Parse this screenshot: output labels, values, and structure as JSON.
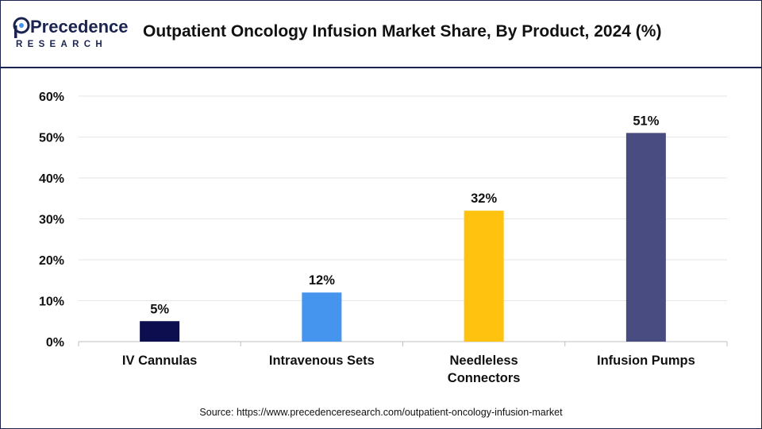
{
  "header": {
    "logo_text_main": "Precedence",
    "logo_text_sub": "RESEARCH",
    "title": "Outpatient Oncology Infusion Market Share, By Product, 2024 (%)"
  },
  "chart_data": {
    "type": "bar",
    "categories": [
      "IV Cannulas",
      "Intravenous Sets",
      "Needleless Connectors",
      "Infusion Pumps"
    ],
    "category_lines": [
      [
        "IV Cannulas"
      ],
      [
        "Intravenous Sets"
      ],
      [
        "Needleless",
        "Connectors"
      ],
      [
        "Infusion Pumps"
      ]
    ],
    "values": [
      5,
      12,
      32,
      51
    ],
    "data_labels": [
      "5%",
      "12%",
      "32%",
      "51%"
    ],
    "colors": [
      "#0d0e4f",
      "#4595ee",
      "#ffc20e",
      "#494c80"
    ],
    "ylim": [
      0,
      60
    ],
    "yticks": [
      0,
      10,
      20,
      30,
      40,
      50,
      60
    ],
    "ytick_labels": [
      "0%",
      "10%",
      "20%",
      "30%",
      "40%",
      "50%",
      "60%"
    ],
    "grid": true,
    "title": "Outpatient Oncology Infusion Market Share, By Product, 2024 (%)",
    "xlabel": "",
    "ylabel": ""
  },
  "footer": {
    "source": "Source: https://www.precedenceresearch.com/outpatient-oncology-infusion-market"
  }
}
